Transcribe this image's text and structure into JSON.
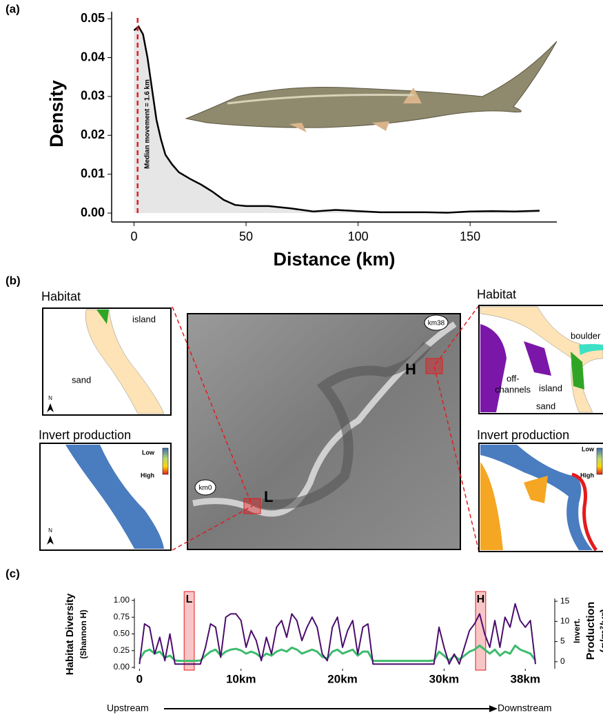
{
  "chart_data": [
    {
      "type": "line",
      "panel": "(a)",
      "xlabel": "Distance (km)",
      "ylabel": "Density",
      "color": "#000000",
      "fill": "#e6e6e6",
      "x": [
        0,
        2,
        4,
        6,
        8,
        10,
        12,
        14,
        17,
        20,
        25,
        30,
        35,
        40,
        45,
        50,
        60,
        70,
        80,
        90,
        100,
        110,
        120,
        130,
        140,
        150,
        160,
        170,
        181
      ],
      "values": [
        0.047,
        0.048,
        0.046,
        0.04,
        0.032,
        0.024,
        0.019,
        0.015,
        0.0125,
        0.0105,
        0.0088,
        0.0073,
        0.0055,
        0.0034,
        0.0021,
        0.0018,
        0.0018,
        0.0012,
        0.0004,
        0.0008,
        0.0005,
        0.0002,
        0.0002,
        0.0002,
        0.0001,
        0.0004,
        0.0005,
        0.0004,
        0.0006
      ],
      "xlim": [
        -10,
        188.7
      ],
      "ylim": [
        -0.0023,
        0.0518
      ],
      "xticks": [
        0,
        50,
        100,
        150
      ],
      "yticks": [
        {
          "value": 0,
          "label": "0.00"
        },
        0.01,
        0.02,
        0.03,
        0.04,
        0.05
      ],
      "median": 1.6,
      "median_label": "Median movement = 1.6 km",
      "median_color": "#e41a1c"
    },
    {
      "type": "line",
      "panel": "(c)",
      "ylabel": [
        "Habitat Diversity",
        "(Shannon H)"
      ],
      "y2label": [
        "Invert.",
        "Production",
        "(g/m²/yr)"
      ],
      "start_label": "Upstream",
      "end_label": "Downstream",
      "x": [
        0,
        0.5,
        1,
        1.5,
        2,
        2.5,
        3,
        3.5,
        4,
        4.5,
        5,
        5.5,
        6,
        6.5,
        7,
        7.5,
        8,
        8.5,
        9,
        9.5,
        10,
        10.5,
        11,
        11.5,
        12,
        12.5,
        13,
        13.5,
        14,
        14.5,
        15,
        15.5,
        16,
        16.5,
        17,
        17.5,
        18,
        18.5,
        19,
        19.5,
        20,
        20.5,
        21,
        21.5,
        22,
        22.5,
        23,
        23.5,
        24,
        24.5,
        25,
        25.5,
        26,
        26.5,
        27,
        27.5,
        28,
        28.5,
        29,
        29.5,
        30,
        30.5,
        31,
        31.5,
        32,
        32.5,
        33,
        33.5,
        34,
        34.5,
        35,
        35.5,
        36,
        36.5,
        37,
        37.5,
        38,
        38.5,
        39
      ],
      "series": [
        {
          "name": "Habitat Diversity",
          "color": "#4b0c6b",
          "values": [
            0.05,
            0.65,
            0.6,
            0.2,
            0.45,
            0.1,
            0.5,
            0.05,
            0.05,
            0.05,
            0.05,
            0.05,
            0.05,
            0.3,
            0.65,
            0.6,
            0.15,
            0.75,
            0.8,
            0.8,
            0.7,
            0.3,
            0.55,
            0.4,
            0.1,
            0.45,
            0.2,
            0.6,
            0.7,
            0.45,
            0.8,
            0.7,
            0.4,
            0.6,
            0.75,
            0.6,
            0.2,
            0.1,
            0.6,
            0.75,
            0.3,
            0.55,
            0.7,
            0.2,
            0.6,
            0.65,
            0.05,
            0.05,
            0.05,
            0.05,
            0.05,
            0.05,
            0.05,
            0.05,
            0.05,
            0.05,
            0.05,
            0.05,
            0.05,
            0.6,
            0.3,
            0.05,
            0.2,
            0.05,
            0.3,
            0.55,
            0.65,
            0.8,
            0.5,
            0.3,
            0.7,
            0.3,
            0.75,
            0.6,
            0.95,
            0.7,
            0.6,
            0.7,
            0.05
          ]
        },
        {
          "name": "Invert. Production",
          "color": "#3dbb6e",
          "axis": "y2",
          "values": [
            0.5,
            2.5,
            3,
            2,
            2.5,
            1,
            1.5,
            0.3,
            0.2,
            0.2,
            0.2,
            0.2,
            0.3,
            1.5,
            2.5,
            3,
            1.5,
            2.5,
            3,
            3.2,
            2.8,
            2,
            2.5,
            2,
            1,
            2,
            1.5,
            2.5,
            3,
            2.5,
            3.5,
            3,
            2,
            2.5,
            3,
            2.5,
            1.2,
            0.8,
            2.5,
            3,
            2,
            2.5,
            3,
            1.5,
            2.5,
            2.5,
            0.2,
            0.2,
            0.2,
            0.2,
            0.2,
            0.2,
            0.2,
            0.2,
            0.2,
            0.2,
            0.2,
            0.2,
            0.3,
            2.5,
            1.5,
            0.3,
            1.5,
            0.5,
            1.5,
            2.5,
            3,
            4,
            3,
            2,
            3,
            1.5,
            2.5,
            2,
            4,
            3,
            2.5,
            2,
            0.3
          ]
        }
      ],
      "xlim": [
        -0.5,
        40.9
      ],
      "ylim": [
        -0.02,
        1.03
      ],
      "y2lim": [
        -1.75,
        15.7
      ],
      "xticks": [
        0,
        {
          "value": 10,
          "label": "10km"
        },
        {
          "value": 20,
          "label": "20km"
        },
        {
          "value": 30,
          "label": "30km"
        },
        {
          "value": 38,
          "label": "38km"
        }
      ],
      "yticks": [
        {
          "value": 0,
          "label": "0.00"
        },
        0.25,
        {
          "value": 0.5,
          "label": "0.50"
        },
        0.75,
        {
          "value": 1,
          "label": "1.00"
        }
      ],
      "y2ticks": [
        0,
        5,
        10,
        15
      ],
      "highlights": [
        {
          "label": "L",
          "x": [
            4.4,
            5.4
          ]
        },
        {
          "label": "H",
          "x": [
            33.1,
            34.1
          ]
        }
      ],
      "highlight_color": "#e41a1c"
    }
  ],
  "map": {
    "panel": "(b)",
    "habitat": "Habitat",
    "invert": "Invert production",
    "low": "Low",
    "high": "High",
    "north": "N",
    "left": {
      "island": "island",
      "sand": "sand"
    },
    "right": {
      "boulder": "boulder",
      "off1": "off-",
      "off2": "channels",
      "island": "island",
      "sand": "sand"
    },
    "km0": "km0",
    "km38": "km38",
    "L": "L",
    "H": "H"
  }
}
